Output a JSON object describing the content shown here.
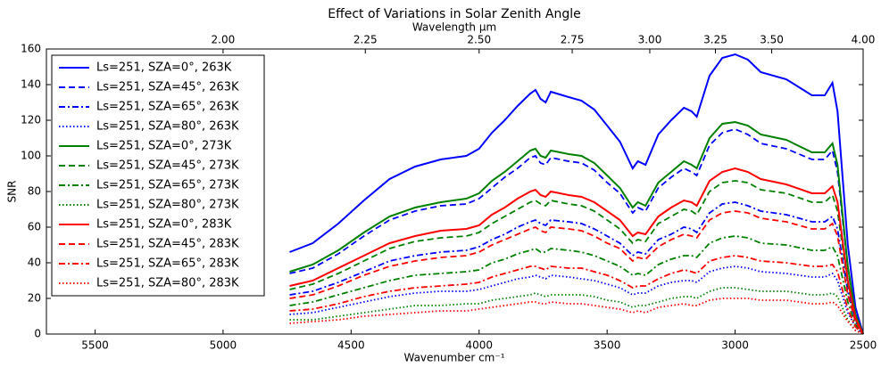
{
  "chart_data": {
    "type": "line",
    "title": "Effect of Variations in Solar Zenith Angle",
    "xlabel": "Wavenumber cm⁻¹",
    "ylabel": "SNR",
    "x2label": "Wavelength μm",
    "xlim": [
      5690,
      2500
    ],
    "xticks": [
      5500,
      5000,
      4500,
      4000,
      3500,
      3000,
      2500
    ],
    "x2ticks": [
      {
        "value": 2.0,
        "label": "2.00"
      },
      {
        "value": 2.25,
        "label": "2.25"
      },
      {
        "value": 2.5,
        "label": "2.50"
      },
      {
        "value": 2.75,
        "label": "2.75"
      },
      {
        "value": 3.0,
        "label": "3.00"
      },
      {
        "value": 3.25,
        "label": "3.25"
      },
      {
        "value": 3.5,
        "label": "3.50"
      },
      {
        "value": 4.0,
        "label": "4.00"
      }
    ],
    "ylim": [
      0,
      160
    ],
    "yticks": [
      0,
      20,
      40,
      60,
      80,
      100,
      120,
      140,
      160
    ],
    "legend": "upper left",
    "x": [
      4740,
      4650,
      4550,
      4450,
      4350,
      4250,
      4150,
      4050,
      4000,
      3950,
      3900,
      3850,
      3800,
      3780,
      3760,
      3740,
      3720,
      3650,
      3600,
      3550,
      3500,
      3450,
      3400,
      3380,
      3350,
      3300,
      3250,
      3200,
      3170,
      3150,
      3100,
      3050,
      3000,
      2950,
      2900,
      2800,
      2700,
      2650,
      2620,
      2600,
      2560,
      2530,
      2500
    ],
    "series": [
      {
        "name": "Ls=251, SZA=0°, 263K",
        "color": "#0000ff",
        "linestyle": "solid",
        "values": [
          46,
          51,
          62,
          75,
          87,
          94,
          98,
          100,
          104,
          113,
          120,
          128,
          135,
          137,
          132,
          130,
          136,
          133,
          131,
          126,
          117,
          108,
          93,
          97,
          95,
          112,
          120,
          127,
          125,
          122,
          145,
          155,
          157,
          154,
          147,
          143,
          134,
          134,
          141,
          125,
          50,
          15,
          0
        ]
      },
      {
        "name": "Ls=251, SZA=45°, 263K",
        "color": "#0000ff",
        "linestyle": "dashed",
        "values": [
          34,
          37,
          45,
          55,
          64,
          69,
          72,
          73,
          76,
          82,
          88,
          93,
          99,
          100,
          96,
          95,
          99,
          97,
          96,
          92,
          85,
          79,
          68,
          71,
          69,
          82,
          88,
          93,
          91,
          89,
          106,
          113,
          115,
          112,
          107,
          104,
          98,
          98,
          103,
          91,
          37,
          11,
          0
        ]
      },
      {
        "name": "Ls=251, SZA=65°, 263K",
        "color": "#0000ff",
        "linestyle": "dashdot",
        "values": [
          22,
          24,
          29,
          35,
          41,
          44,
          46,
          47,
          49,
          53,
          56,
          60,
          63,
          64,
          62,
          61,
          64,
          63,
          62,
          59,
          55,
          51,
          44,
          46,
          45,
          53,
          56,
          60,
          59,
          57,
          68,
          73,
          74,
          72,
          69,
          67,
          63,
          63,
          66,
          59,
          24,
          7,
          0
        ]
      },
      {
        "name": "Ls=251, SZA=80°, 263K",
        "color": "#0000ff",
        "linestyle": "dotted",
        "values": [
          11,
          12,
          15,
          18,
          21,
          23,
          24,
          24,
          25,
          27,
          29,
          31,
          32,
          33,
          32,
          31,
          33,
          32,
          31,
          30,
          28,
          26,
          22,
          23,
          23,
          27,
          29,
          30,
          30,
          29,
          35,
          37,
          38,
          37,
          35,
          34,
          32,
          32,
          34,
          30,
          12,
          4,
          0
        ]
      },
      {
        "name": "Ls=251, SZA=0°, 273K",
        "color": "#008000",
        "linestyle": "solid",
        "values": [
          35,
          39,
          47,
          57,
          66,
          71,
          74,
          76,
          79,
          86,
          91,
          97,
          103,
          104,
          100,
          99,
          103,
          101,
          100,
          96,
          89,
          82,
          71,
          74,
          72,
          85,
          91,
          97,
          95,
          93,
          110,
          118,
          119,
          117,
          112,
          109,
          102,
          102,
          107,
          95,
          38,
          11,
          0
        ]
      },
      {
        "name": "Ls=251, SZA=45°, 273K",
        "color": "#008000",
        "linestyle": "dashed",
        "values": [
          25,
          28,
          34,
          41,
          48,
          52,
          54,
          55,
          57,
          62,
          66,
          70,
          74,
          75,
          73,
          72,
          75,
          73,
          72,
          69,
          64,
          59,
          51,
          53,
          52,
          62,
          66,
          70,
          69,
          67,
          80,
          85,
          86,
          85,
          81,
          79,
          74,
          74,
          78,
          69,
          28,
          8,
          0
        ]
      },
      {
        "name": "Ls=251, SZA=65°, 273K",
        "color": "#008000",
        "linestyle": "dashdot",
        "values": [
          16,
          18,
          22,
          26,
          30,
          33,
          34,
          35,
          36,
          40,
          42,
          45,
          47,
          48,
          46,
          46,
          48,
          47,
          46,
          44,
          41,
          38,
          33,
          34,
          33,
          39,
          42,
          44,
          44,
          43,
          51,
          54,
          55,
          54,
          51,
          50,
          47,
          47,
          49,
          44,
          18,
          5,
          0
        ]
      },
      {
        "name": "Ls=251, SZA=80°, 273K",
        "color": "#008000",
        "linestyle": "dotted",
        "values": [
          8,
          8,
          10,
          12,
          14,
          16,
          16,
          17,
          17,
          19,
          20,
          21,
          22,
          23,
          22,
          21,
          22,
          22,
          22,
          21,
          19,
          18,
          15,
          16,
          16,
          18,
          20,
          21,
          21,
          20,
          24,
          26,
          26,
          25,
          24,
          24,
          22,
          22,
          23,
          21,
          8,
          2,
          0
        ]
      },
      {
        "name": "Ls=251, SZA=0°, 283K",
        "color": "#ff0000",
        "linestyle": "solid",
        "values": [
          27,
          30,
          37,
          44,
          51,
          55,
          58,
          59,
          61,
          67,
          71,
          76,
          80,
          81,
          78,
          77,
          80,
          78,
          77,
          74,
          69,
          64,
          55,
          57,
          56,
          66,
          71,
          75,
          74,
          72,
          86,
          91,
          93,
          91,
          87,
          84,
          79,
          79,
          83,
          74,
          30,
          9,
          0
        ]
      },
      {
        "name": "Ls=251, SZA=45°, 283K",
        "color": "#ff0000",
        "linestyle": "dashed",
        "values": [
          20,
          22,
          27,
          33,
          38,
          41,
          43,
          44,
          46,
          50,
          53,
          56,
          59,
          60,
          58,
          57,
          60,
          59,
          58,
          55,
          51,
          48,
          41,
          43,
          42,
          49,
          53,
          56,
          55,
          54,
          64,
          68,
          69,
          68,
          65,
          63,
          59,
          59,
          62,
          55,
          22,
          7,
          0
        ]
      },
      {
        "name": "Ls=251, SZA=65°, 283K",
        "color": "#ff0000",
        "linestyle": "dashdot",
        "values": [
          13,
          14,
          17,
          21,
          24,
          26,
          27,
          28,
          29,
          32,
          34,
          36,
          38,
          38,
          37,
          36,
          38,
          37,
          37,
          35,
          33,
          30,
          26,
          27,
          27,
          31,
          34,
          36,
          35,
          34,
          41,
          43,
          44,
          43,
          41,
          40,
          38,
          38,
          39,
          35,
          14,
          4,
          0
        ]
      },
      {
        "name": "Ls=251, SZA=80°, 283K",
        "color": "#ff0000",
        "linestyle": "dotted",
        "values": [
          6,
          7,
          8,
          10,
          11,
          12,
          13,
          13,
          14,
          15,
          16,
          17,
          18,
          18,
          17,
          17,
          18,
          17,
          17,
          16,
          15,
          14,
          12,
          13,
          12,
          15,
          16,
          17,
          16,
          16,
          19,
          20,
          20,
          20,
          19,
          19,
          17,
          17,
          18,
          16,
          7,
          2,
          0
        ]
      }
    ]
  }
}
